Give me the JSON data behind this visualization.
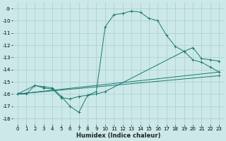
{
  "xlabel": "Humidex (Indice chaleur)",
  "bg_color": "#cce8e8",
  "line_color": "#1a7a6e",
  "grid_color": "#aacece",
  "xlim": [
    -0.5,
    23.5
  ],
  "ylim": [
    -18.5,
    -8.5
  ],
  "xticks": [
    0,
    1,
    2,
    3,
    4,
    5,
    6,
    7,
    8,
    9,
    10,
    11,
    12,
    13,
    14,
    15,
    16,
    17,
    18,
    19,
    20,
    21,
    22,
    23
  ],
  "yticks": [
    -9,
    -10,
    -11,
    -12,
    -13,
    -14,
    -15,
    -16,
    -17,
    -18
  ],
  "line1_x": [
    0,
    1,
    2,
    3,
    4,
    5,
    6,
    7,
    8,
    9,
    10,
    11,
    12,
    13,
    14,
    15,
    16,
    17,
    18,
    19,
    20,
    21,
    22,
    23
  ],
  "line1_y": [
    -16.0,
    -16.0,
    -15.3,
    -15.4,
    -15.5,
    -16.2,
    -17.0,
    -17.5,
    -16.1,
    -15.8,
    -10.5,
    -9.5,
    -9.4,
    -9.2,
    -9.3,
    -9.8,
    -10.0,
    -11.2,
    -12.1,
    -12.5,
    -13.2,
    -13.4,
    -13.8,
    -14.2
  ],
  "line2_x": [
    0,
    2,
    3,
    4,
    5,
    6,
    7,
    8,
    9,
    10,
    19,
    20,
    21,
    22,
    23
  ],
  "line2_y": [
    -16.0,
    -15.3,
    -15.5,
    -15.6,
    -16.3,
    -16.4,
    -16.2,
    -16.1,
    -16.0,
    -15.8,
    -12.5,
    -12.2,
    -13.1,
    -13.2,
    -13.3
  ],
  "line3_x": [
    0,
    23
  ],
  "line3_y": [
    -16.0,
    -14.2
  ],
  "line4_x": [
    0,
    23
  ],
  "line4_y": [
    -16.0,
    -14.5
  ]
}
